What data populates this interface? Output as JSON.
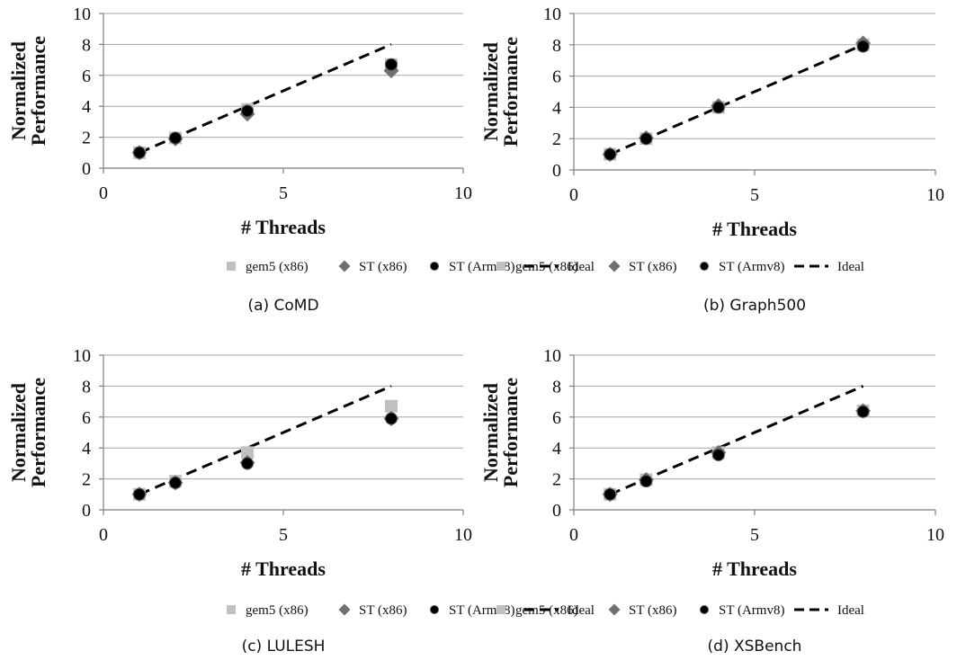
{
  "legend": [
    {
      "key": "gem5",
      "label": "gem5 (x86)",
      "marker": "square",
      "color": "#c0c0c0"
    },
    {
      "key": "st_x86",
      "label": "ST (x86)",
      "marker": "diamond",
      "color": "#707070"
    },
    {
      "key": "st_armv8",
      "label": "ST (Armv8)",
      "marker": "circle",
      "color": "#000000"
    },
    {
      "key": "ideal",
      "label": "Ideal",
      "marker": "dash",
      "color": "#000000"
    }
  ],
  "chart_data": [
    {
      "type": "scatter",
      "caption": "(a) CoMD",
      "xlabel": "# Threads",
      "ylabel": [
        "Normalized",
        "Performance"
      ],
      "xlim": [
        0,
        10
      ],
      "ylim": [
        0,
        10
      ],
      "xticks": [
        0,
        5,
        10
      ],
      "yticks": [
        0,
        2,
        4,
        6,
        8,
        10
      ],
      "grid": true,
      "legend_position": "bottom",
      "series": [
        {
          "name": "gem5 (x86)",
          "marker": "square",
          "color": "#c0c0c0",
          "x": [
            1,
            2,
            4,
            8
          ],
          "y": [
            1.0,
            1.95,
            3.8,
            6.7
          ]
        },
        {
          "name": "ST (x86)",
          "marker": "diamond",
          "color": "#707070",
          "x": [
            1,
            2,
            4,
            8
          ],
          "y": [
            1.0,
            1.9,
            3.5,
            6.3
          ]
        },
        {
          "name": "ST (Armv8)",
          "marker": "circle",
          "color": "#000000",
          "x": [
            1,
            2,
            4,
            8
          ],
          "y": [
            1.0,
            1.95,
            3.7,
            6.7
          ]
        },
        {
          "name": "Ideal",
          "marker": "dash",
          "color": "#000000",
          "x": [
            1,
            8
          ],
          "y": [
            1,
            8
          ]
        }
      ]
    },
    {
      "type": "scatter",
      "caption": "(b) Graph500",
      "xlabel": "# Threads",
      "ylabel": [
        "Normalized",
        "Performance"
      ],
      "xlim": [
        0,
        10
      ],
      "ylim": [
        0,
        10
      ],
      "xticks": [
        0,
        5,
        10
      ],
      "yticks": [
        0,
        2,
        4,
        6,
        8,
        10
      ],
      "grid": true,
      "legend_position": "bottom",
      "series": [
        {
          "name": "gem5 (x86)",
          "marker": "square",
          "color": "#c0c0c0",
          "x": [
            1,
            2,
            4,
            8
          ],
          "y": [
            1.0,
            2.0,
            4.0,
            8.0
          ]
        },
        {
          "name": "ST (x86)",
          "marker": "diamond",
          "color": "#707070",
          "x": [
            1,
            2,
            4,
            8
          ],
          "y": [
            1.0,
            2.05,
            4.1,
            8.1
          ]
        },
        {
          "name": "ST (Armv8)",
          "marker": "circle",
          "color": "#000000",
          "x": [
            1,
            2,
            4,
            8
          ],
          "y": [
            1.0,
            2.0,
            4.0,
            7.9
          ]
        },
        {
          "name": "Ideal",
          "marker": "dash",
          "color": "#000000",
          "x": [
            1,
            8
          ],
          "y": [
            1,
            8
          ]
        }
      ]
    },
    {
      "type": "scatter",
      "caption": "(c) LULESH",
      "xlabel": "# Threads",
      "ylabel": [
        "Normalized",
        "Performance"
      ],
      "xlim": [
        0,
        10
      ],
      "ylim": [
        0,
        10
      ],
      "xticks": [
        0,
        5,
        10
      ],
      "yticks": [
        0,
        2,
        4,
        6,
        8,
        10
      ],
      "grid": true,
      "legend_position": "bottom",
      "series": [
        {
          "name": "gem5 (x86)",
          "marker": "square",
          "color": "#c0c0c0",
          "x": [
            1,
            2,
            4,
            8
          ],
          "y": [
            1.0,
            1.85,
            3.7,
            6.7
          ]
        },
        {
          "name": "ST (x86)",
          "marker": "diamond",
          "color": "#707070",
          "x": [
            1,
            2,
            4,
            8
          ],
          "y": [
            1.0,
            1.75,
            3.05,
            5.9
          ]
        },
        {
          "name": "ST (Armv8)",
          "marker": "circle",
          "color": "#000000",
          "x": [
            1,
            2,
            4,
            8
          ],
          "y": [
            1.0,
            1.75,
            3.0,
            5.9
          ]
        },
        {
          "name": "Ideal",
          "marker": "dash",
          "color": "#000000",
          "x": [
            1,
            8
          ],
          "y": [
            1,
            8
          ]
        }
      ]
    },
    {
      "type": "scatter",
      "caption": "(d) XSBench",
      "xlabel": "# Threads",
      "ylabel": [
        "Normalized",
        "Performance"
      ],
      "xlim": [
        0,
        10
      ],
      "ylim": [
        0,
        10
      ],
      "xticks": [
        0,
        5,
        10
      ],
      "yticks": [
        0,
        2,
        4,
        6,
        8,
        10
      ],
      "grid": true,
      "legend_position": "bottom",
      "series": [
        {
          "name": "gem5 (x86)",
          "marker": "square",
          "color": "#c0c0c0",
          "x": [
            1,
            2,
            4,
            8
          ],
          "y": [
            1.0,
            1.95,
            3.7,
            6.4
          ]
        },
        {
          "name": "ST (x86)",
          "marker": "diamond",
          "color": "#707070",
          "x": [
            1,
            2,
            4,
            8
          ],
          "y": [
            1.0,
            1.95,
            3.7,
            6.4
          ]
        },
        {
          "name": "ST (Armv8)",
          "marker": "circle",
          "color": "#000000",
          "x": [
            1,
            2,
            4,
            8
          ],
          "y": [
            1.0,
            1.85,
            3.55,
            6.35
          ]
        },
        {
          "name": "Ideal",
          "marker": "dash",
          "color": "#000000",
          "x": [
            1,
            8
          ],
          "y": [
            1,
            8
          ]
        }
      ]
    }
  ]
}
